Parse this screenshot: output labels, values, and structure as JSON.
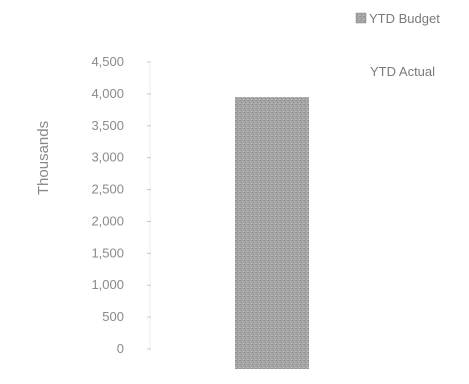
{
  "chart_data": {
    "type": "bar",
    "title": "",
    "xlabel": "",
    "ylabel": "Thousands",
    "ylim": [
      0,
      4500
    ],
    "y_ticks": [
      "4,500",
      "4,000",
      "3,500",
      "3,000",
      "2,500",
      "2,000",
      "1,500",
      "1,000",
      "500",
      "0"
    ],
    "y_tick_values": [
      4500,
      4000,
      3500,
      3000,
      2500,
      2000,
      1500,
      1000,
      500,
      0
    ],
    "categories": [
      ""
    ],
    "series": [
      {
        "name": "YTD Budget",
        "values": [
          3950
        ],
        "color": "#a3a3a3"
      },
      {
        "name": "YTD Actual",
        "values": [
          null
        ],
        "color": "#ffffff"
      }
    ],
    "grid": false,
    "legend_position": "top-right",
    "colors": {
      "axis_text": "#8a8a8a",
      "tick_mark": "#c8c8c8",
      "budget_fill": "#a3a3a3"
    }
  }
}
